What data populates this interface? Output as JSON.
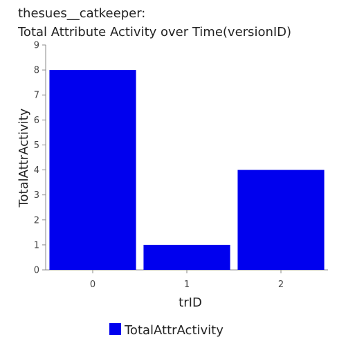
{
  "chart_data": {
    "type": "bar",
    "title_lines": [
      "thesues__catkeeper:",
      "Total Attribute Activity over Time(versionID)"
    ],
    "xlabel": "trID",
    "ylabel": "TotalAttrActivity",
    "categories": [
      "0",
      "1",
      "2"
    ],
    "series": [
      {
        "name": "TotalAttrActivity",
        "values": [
          8,
          1,
          4
        ],
        "color": "#0000ee"
      }
    ],
    "ylim": [
      0,
      9
    ],
    "yticks": [
      0,
      1,
      2,
      3,
      4,
      5,
      6,
      7,
      8,
      9
    ],
    "grid": false,
    "legend_position": "bottom-center"
  }
}
